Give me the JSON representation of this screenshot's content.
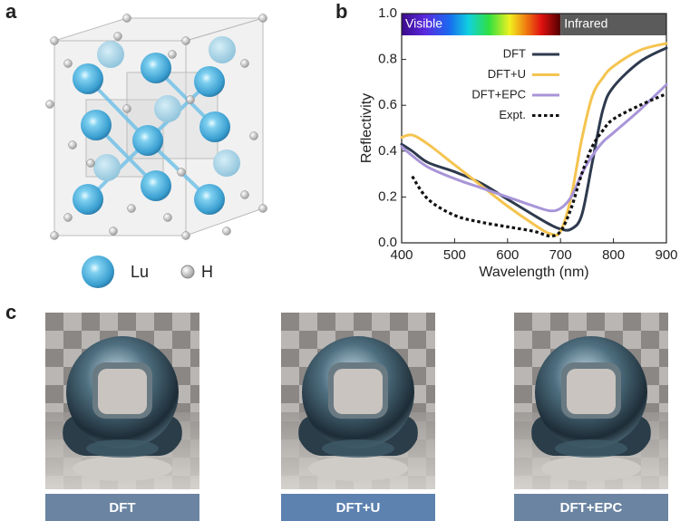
{
  "figure": {
    "panel_labels": [
      "a",
      "b",
      "c"
    ],
    "atom_legend": [
      "Lu",
      "H"
    ],
    "render_labels": [
      "DFT",
      "DFT+U",
      "DFT+EPC"
    ]
  },
  "chart_data": {
    "type": "line",
    "xlabel": "Wavelength (nm)",
    "ylabel": "Reflectivity",
    "x": [
      400,
      420,
      450,
      500,
      550,
      600,
      650,
      680,
      700,
      720,
      740,
      760,
      780,
      800,
      850,
      900
    ],
    "series": [
      {
        "name": "DFT",
        "color": "#2e3a4e",
        "values": [
          0.43,
          0.4,
          0.35,
          0.31,
          0.26,
          0.19,
          0.12,
          0.08,
          0.06,
          0.06,
          0.12,
          0.35,
          0.58,
          0.68,
          0.79,
          0.85
        ]
      },
      {
        "name": "DFT+U",
        "color": "#f5c450",
        "values": [
          0.46,
          0.47,
          0.43,
          0.34,
          0.25,
          0.16,
          0.08,
          0.04,
          0.05,
          0.2,
          0.45,
          0.64,
          0.72,
          0.77,
          0.84,
          0.87
        ]
      },
      {
        "name": "DFT+EPC",
        "color": "#a895d8",
        "values": [
          0.42,
          0.38,
          0.33,
          0.28,
          0.24,
          0.2,
          0.16,
          0.14,
          0.15,
          0.2,
          0.3,
          0.38,
          0.44,
          0.48,
          0.58,
          0.69
        ]
      },
      {
        "name": "Expt.",
        "color": "#111111",
        "dashed": true,
        "values": [
          null,
          0.29,
          0.19,
          0.12,
          0.09,
          0.07,
          0.05,
          0.03,
          0.05,
          0.15,
          0.3,
          0.42,
          0.49,
          0.54,
          0.6,
          0.65
        ]
      }
    ],
    "spectrum_bands": [
      {
        "label": "Visible",
        "range": [
          400,
          700
        ]
      },
      {
        "label": "Infrared",
        "range": [
          700,
          900
        ]
      }
    ],
    "xlim": [
      400,
      900
    ],
    "xticks": [
      400,
      500,
      600,
      700,
      800,
      900
    ],
    "ylim": [
      0,
      1
    ],
    "yticks": [
      {
        "value": 0,
        "label": "0.0"
      },
      0.2,
      0.4,
      0.6,
      0.8,
      {
        "value": 1,
        "label": "1.0"
      }
    ]
  }
}
